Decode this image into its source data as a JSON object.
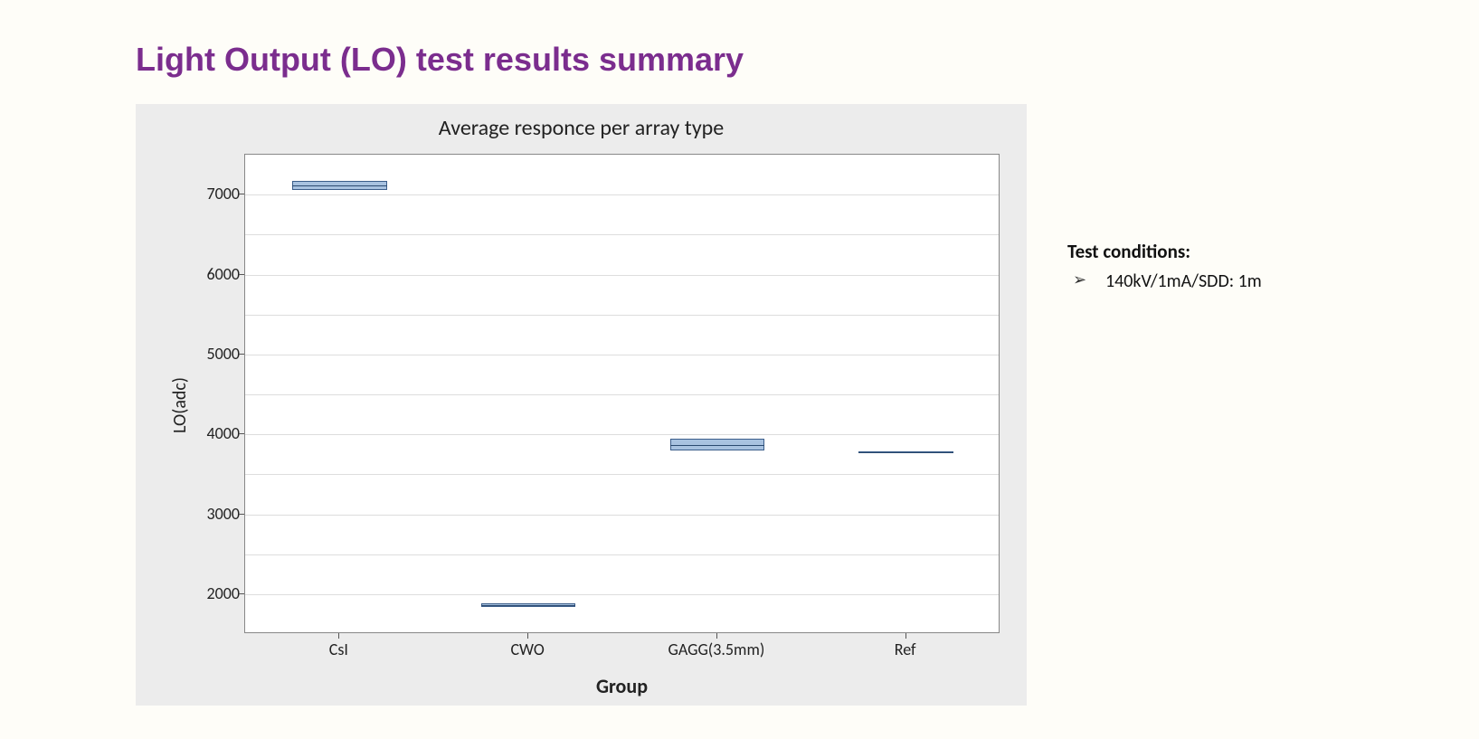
{
  "title": "Light Output (LO) test results summary",
  "chart": {
    "type": "boxplot",
    "title": "Average responce per array type",
    "xlabel": "Group",
    "ylabel": "LO(adc)",
    "background_color": "#ececec",
    "plot_background": "#ffffff",
    "grid_color": "#dddddd",
    "axis_color": "#888888",
    "title_fontsize": 24,
    "label_fontsize": 20,
    "tick_fontsize": 18,
    "ylim": [
      1500,
      7500
    ],
    "yticks": [
      2000,
      3000,
      4000,
      5000,
      6000,
      7000
    ],
    "gridlines": [
      2000,
      2500,
      3000,
      3500,
      4000,
      4500,
      5000,
      5500,
      6000,
      6500,
      7000
    ],
    "categories": [
      "CsI",
      "CWO",
      "GAGG(3.5mm)",
      "Ref"
    ],
    "boxes": [
      {
        "q1": 7060,
        "median": 7110,
        "q3": 7170
      },
      {
        "q1": 1840,
        "median": 1860,
        "q3": 1880
      },
      {
        "q1": 3800,
        "median": 3870,
        "q3": 3950
      },
      {
        "q1": 3760,
        "median": 3770,
        "q3": 3790
      }
    ],
    "box_fill": "#a8c2e0",
    "box_border": "#3b5d8a",
    "median_color": "#2b4a70",
    "box_rel_width": 0.5
  },
  "conditions": {
    "title": "Test conditions:",
    "items": [
      "140kV/1mA/SDD: 1m"
    ]
  }
}
